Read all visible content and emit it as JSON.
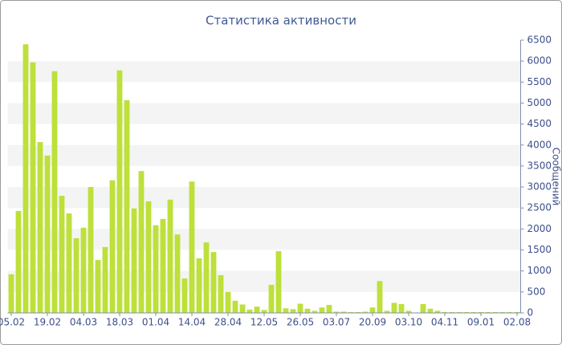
{
  "chart_data": {
    "type": "bar",
    "title": "Статистика активности",
    "y_label": "Сообщений",
    "categories": [
      "05.02",
      null,
      null,
      null,
      null,
      "19.02",
      null,
      null,
      null,
      null,
      "04.03",
      null,
      null,
      null,
      null,
      "18.03",
      null,
      null,
      null,
      null,
      "01.04",
      null,
      null,
      null,
      null,
      "14.04",
      null,
      null,
      null,
      null,
      "28.04",
      null,
      null,
      null,
      null,
      "12.05",
      null,
      null,
      null,
      null,
      "26.05",
      null,
      null,
      null,
      null,
      "03.07",
      null,
      null,
      null,
      null,
      "20.09",
      null,
      null,
      null,
      null,
      "03.10",
      null,
      null,
      null,
      null,
      "04.11",
      null,
      null,
      null,
      null,
      "09.01",
      null,
      null,
      null,
      null,
      "02.08"
    ],
    "values": [
      920,
      2430,
      6400,
      5970,
      4070,
      3750,
      5760,
      2790,
      2370,
      1780,
      2030,
      3000,
      1260,
      1570,
      3160,
      5780,
      5070,
      2490,
      3380,
      2660,
      2090,
      2240,
      2700,
      1870,
      820,
      3130,
      1300,
      1680,
      1450,
      900,
      500,
      290,
      200,
      80,
      150,
      70,
      670,
      1470,
      110,
      90,
      220,
      100,
      50,
      130,
      190,
      30,
      30,
      20,
      20,
      30,
      130,
      760,
      50,
      240,
      210,
      50,
      10,
      210,
      100,
      50,
      20,
      20,
      20,
      20,
      20,
      20,
      20,
      20,
      20,
      20,
      20
    ],
    "color": "#bde03b",
    "ylim": [
      0,
      6500
    ],
    "yticks": [
      0,
      500,
      1000,
      1500,
      2000,
      2500,
      3000,
      3500,
      4000,
      4500,
      5000,
      5500,
      6000,
      6500
    ],
    "grid": true
  }
}
